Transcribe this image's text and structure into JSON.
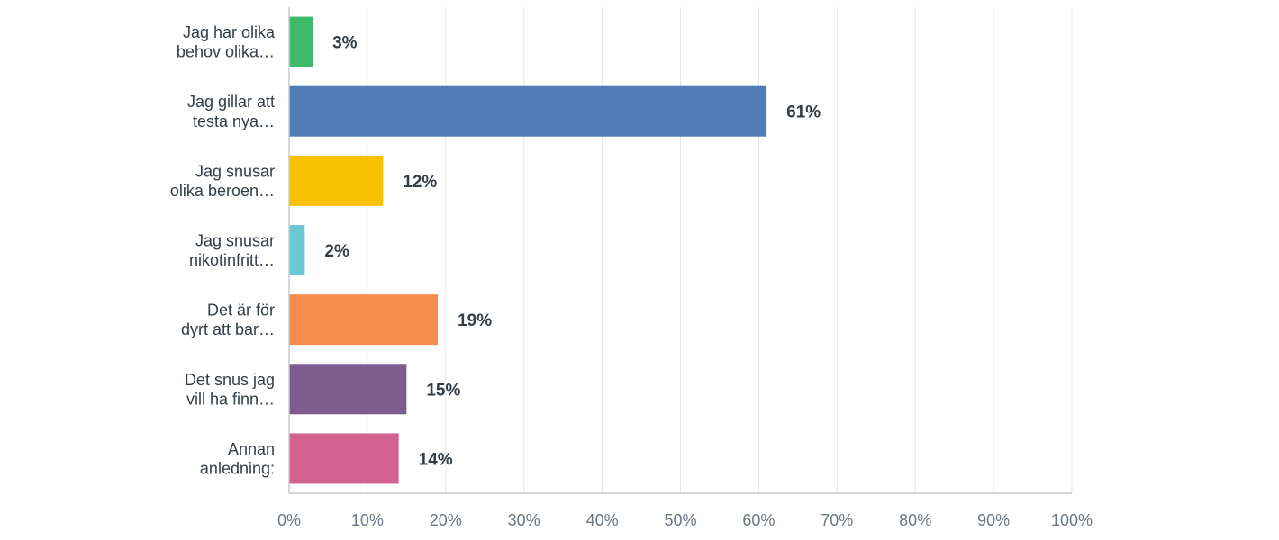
{
  "chart_data": {
    "type": "bar",
    "orientation": "horizontal",
    "categories": [
      [
        "Jag har olika",
        "behov olika…"
      ],
      [
        "Jag gillar att",
        "testa nya…"
      ],
      [
        "Jag snusar",
        "olika beroen…"
      ],
      [
        "Jag snusar",
        "nikotinfritt…"
      ],
      [
        "Det är för",
        "dyrt att bar…"
      ],
      [
        "Det snus jag",
        "vill ha finn…"
      ],
      [
        "Annan",
        "anledning:"
      ]
    ],
    "values": [
      3,
      61,
      12,
      2,
      19,
      15,
      14
    ],
    "value_labels": [
      "3%",
      "61%",
      "12%",
      "2%",
      "19%",
      "15%",
      "14%"
    ],
    "colors": [
      "#3dba6a",
      "#507cb6",
      "#f8c000",
      "#6cc8d2",
      "#f68b4d",
      "#7e5d8e",
      "#d26190"
    ],
    "xlim": [
      0,
      100
    ],
    "xticks": [
      0,
      10,
      20,
      30,
      40,
      50,
      60,
      70,
      80,
      90,
      100
    ],
    "xtick_labels": [
      "0%",
      "10%",
      "20%",
      "30%",
      "40%",
      "50%",
      "60%",
      "70%",
      "80%",
      "90%",
      "100%"
    ],
    "grid": true,
    "legend": "none"
  }
}
